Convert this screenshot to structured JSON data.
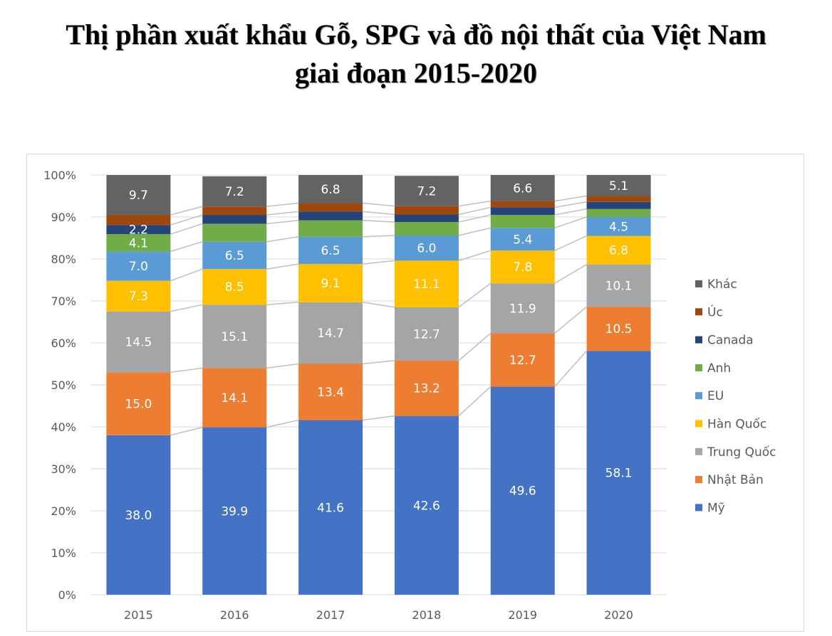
{
  "title": {
    "line1": "Thị phần xuất khẩu Gỗ, SPG và đồ nội thất của Việt Nam",
    "line2": "giai đoạn 2015-2020"
  },
  "chart_data": {
    "type": "bar",
    "stacked": true,
    "percent": true,
    "title": "Thị phần xuất khẩu Gỗ, SPG và đồ nội thất của Việt Nam giai đoạn 2015-2020",
    "categories": [
      "2015",
      "2016",
      "2017",
      "2018",
      "2019",
      "2020"
    ],
    "ylim": [
      0,
      100
    ],
    "y_ticks": [
      "0%",
      "10%",
      "20%",
      "30%",
      "40%",
      "50%",
      "60%",
      "70%",
      "80%",
      "90%",
      "100%"
    ],
    "grid": true,
    "legend_position": "right",
    "series_lines": true,
    "series": [
      {
        "name": "Mỹ",
        "color": "#4472C4",
        "values": [
          38.0,
          39.9,
          41.6,
          42.6,
          49.6,
          58.1
        ],
        "labels": [
          "38.0",
          "39.9",
          "41.6",
          "42.6",
          "49.6",
          "58.1"
        ]
      },
      {
        "name": "Nhật Bản",
        "color": "#ED7D31",
        "values": [
          15.0,
          14.1,
          13.4,
          13.2,
          12.7,
          10.5
        ],
        "labels": [
          "15.0",
          "14.1",
          "13.4",
          "13.2",
          "12.7",
          "10.5"
        ]
      },
      {
        "name": "Trung Quốc",
        "color": "#A5A5A5",
        "values": [
          14.5,
          15.1,
          14.7,
          12.7,
          11.9,
          10.1
        ],
        "labels": [
          "14.5",
          "15.1",
          "14.7",
          "12.7",
          "11.9",
          "10.1"
        ]
      },
      {
        "name": "Hàn Quốc",
        "color": "#FFC000",
        "values": [
          7.3,
          8.5,
          9.1,
          11.1,
          7.8,
          6.8
        ],
        "labels": [
          "7.3",
          "8.5",
          "9.1",
          "11.1",
          "7.8",
          "6.8"
        ]
      },
      {
        "name": "EU",
        "color": "#5B9BD5",
        "values": [
          7.0,
          6.5,
          6.5,
          6.0,
          5.4,
          4.5
        ],
        "labels": [
          "7.0",
          "6.5",
          "6.5",
          "6.0",
          "5.4",
          "4.5"
        ]
      },
      {
        "name": "Anh",
        "color": "#70AD47",
        "values": [
          4.1,
          4.3,
          3.9,
          3.2,
          3.1,
          1.9
        ],
        "labels": [
          "4.1",
          "",
          "",
          "",
          "",
          ""
        ]
      },
      {
        "name": "Canada",
        "color": "#264478",
        "values": [
          2.2,
          2.1,
          2.1,
          1.8,
          1.8,
          1.7
        ],
        "labels": [
          "2.2",
          "",
          "",
          "",
          "",
          ""
        ]
      },
      {
        "name": "Úc",
        "color": "#9E480E",
        "values": [
          2.4,
          2.0,
          2.0,
          2.0,
          1.5,
          1.4
        ],
        "labels": [
          "",
          "",
          "",
          "",
          "",
          ""
        ]
      },
      {
        "name": "Khác",
        "color": "#636363",
        "values": [
          9.7,
          7.2,
          6.8,
          7.2,
          6.6,
          5.1
        ],
        "labels": [
          "9.7",
          "7.2",
          "6.8",
          "7.2",
          "6.6",
          "5.1"
        ]
      }
    ],
    "legend_order": [
      "Khác",
      "Úc",
      "Canada",
      "Anh",
      "EU",
      "Hàn Quốc",
      "Trung Quốc",
      "Nhật Bản",
      "Mỹ"
    ],
    "colors": {
      "gridline": "#d9d9d9",
      "connector": "#bfbfbf",
      "axis_text": "#595959",
      "label_light": "#ffffff",
      "label_dark": "#404040"
    }
  }
}
